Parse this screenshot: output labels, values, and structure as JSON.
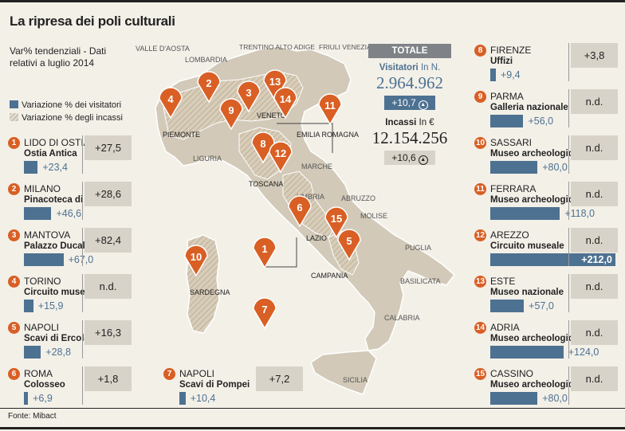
{
  "title": "La ripresa dei poli culturali",
  "subtitle": "Var% tendenziali - Dati relativi a luglio 2014",
  "legend": {
    "visitors": "Variazione % dei visitatori",
    "revenue": "Variazione % degli incassi"
  },
  "colors": {
    "accent": "#d95f24",
    "bar": "#4d7191",
    "box": "#d8d3c8",
    "map": "#d2c9b8"
  },
  "totals": {
    "header": "TOTALE",
    "visitors_label": "Visitatori",
    "visitors_unit": "In N.",
    "visitors_value": "2.964.962",
    "visitors_var": "+10,7",
    "revenue_label": "Incassi",
    "revenue_unit": "In €",
    "revenue_value": "12.154.256",
    "revenue_var": "+10,6"
  },
  "map_labels": {
    "valle_daosta": "VALLE D'AOSTA",
    "lombardia": "LOMBARDIA",
    "trentino": "TRENTINO ALTO ADIGE",
    "friuli": "FRIULI VENEZIA GIULIA",
    "piemonte": "PIEMONTE",
    "veneto": "VENETO",
    "emilia": "EMILIA ROMAGNA",
    "liguria": "LIGURIA",
    "toscana": "TOSCANA",
    "marche": "MARCHE",
    "umbria": "UMBRIA",
    "abruzzo": "ABRUZZO",
    "molise": "MOLISE",
    "lazio": "LAZIO",
    "campania": "CAMPANIA",
    "puglia": "PUGLIA",
    "basilicata": "BASILICATA",
    "calabria": "CALABRIA",
    "sardegna": "SARDEGNA",
    "sicilia": "SICILIA"
  },
  "chart_data": {
    "type": "bar",
    "title": "La ripresa dei poli culturali",
    "subtitle": "Var% tendenziali - Dati relativi a luglio 2014",
    "series": [
      {
        "name": "Variazione % dei visitatori",
        "values": [
          23.4,
          46.6,
          67.0,
          15.9,
          28.8,
          6.9,
          10.4,
          9.4,
          56.0,
          80.0,
          118.0,
          212.0,
          57.0,
          124.0,
          80.0
        ]
      },
      {
        "name": "Variazione % degli incassi",
        "values": [
          27.5,
          28.6,
          82.4,
          null,
          16.3,
          1.8,
          7.2,
          3.8,
          null,
          null,
          null,
          null,
          null,
          null,
          null
        ]
      }
    ],
    "categories": [
      "Ostia Antica",
      "Pinacoteca di Brera",
      "Palazzo Ducale",
      "Circuito museale",
      "Scavi di Ercolano",
      "Colosseo",
      "Scavi di Pompei",
      "Uffizi",
      "Galleria nazionale",
      "Museo archeologico",
      "Museo archeologico",
      "Circuito museale",
      "Museo nazionale",
      "Museo archeologico",
      "Museo archeologico"
    ],
    "items": [
      {
        "n": "1",
        "city": "LIDO DI OSTIA",
        "site": "Ostia Antica",
        "visitors": 23.4,
        "visitors_label": "+23,4",
        "revenue_label": "+27,5"
      },
      {
        "n": "2",
        "city": "MILANO",
        "site": "Pinacoteca di Brera",
        "visitors": 46.6,
        "visitors_label": "+46,6",
        "revenue_label": "+28,6"
      },
      {
        "n": "3",
        "city": "MANTOVA",
        "site": "Palazzo Ducale",
        "visitors": 67.0,
        "visitors_label": "+67,0",
        "revenue_label": "+82,4"
      },
      {
        "n": "4",
        "city": "TORINO",
        "site": "Circuito museale",
        "visitors": 15.9,
        "visitors_label": "+15,9",
        "revenue_label": "n.d."
      },
      {
        "n": "5",
        "city": "NAPOLI",
        "site": "Scavi di Ercolano",
        "visitors": 28.8,
        "visitors_label": "+28,8",
        "revenue_label": "+16,3"
      },
      {
        "n": "6",
        "city": "ROMA",
        "site": "Colosseo",
        "visitors": 6.9,
        "visitors_label": "+6,9",
        "revenue_label": "+1,8"
      },
      {
        "n": "7",
        "city": "NAPOLI",
        "site": "Scavi di Pompei",
        "visitors": 10.4,
        "visitors_label": "+10,4",
        "revenue_label": "+7,2"
      },
      {
        "n": "8",
        "city": "FIRENZE",
        "site": "Uffizi",
        "visitors": 9.4,
        "visitors_label": "+9,4",
        "revenue_label": "+3,8"
      },
      {
        "n": "9",
        "city": "PARMA",
        "site": "Galleria nazionale",
        "visitors": 56.0,
        "visitors_label": "+56,0",
        "revenue_label": "n.d."
      },
      {
        "n": "10",
        "city": "SASSARI",
        "site": "Museo archeologico",
        "visitors": 80.0,
        "visitors_label": "+80,0",
        "revenue_label": "n.d."
      },
      {
        "n": "11",
        "city": "FERRARA",
        "site": "Museo archeologico",
        "visitors": 118.0,
        "visitors_label": "+118,0",
        "revenue_label": "n.d."
      },
      {
        "n": "12",
        "city": "AREZZO",
        "site": "Circuito museale",
        "visitors": 212.0,
        "visitors_label": "+212,0",
        "revenue_label": "n.d."
      },
      {
        "n": "13",
        "city": "ESTE",
        "site": "Museo nazionale",
        "visitors": 57.0,
        "visitors_label": "+57,0",
        "revenue_label": "n.d."
      },
      {
        "n": "14",
        "city": "ADRIA",
        "site": "Museo archeologico",
        "visitors": 124.0,
        "visitors_label": "+124,0",
        "revenue_label": "n.d."
      },
      {
        "n": "15",
        "city": "CASSINO",
        "site": "Museo archeologico",
        "visitors": 80.0,
        "visitors_label": "+80,0",
        "revenue_label": "n.d."
      }
    ]
  },
  "source": "Fonte: Mibact"
}
